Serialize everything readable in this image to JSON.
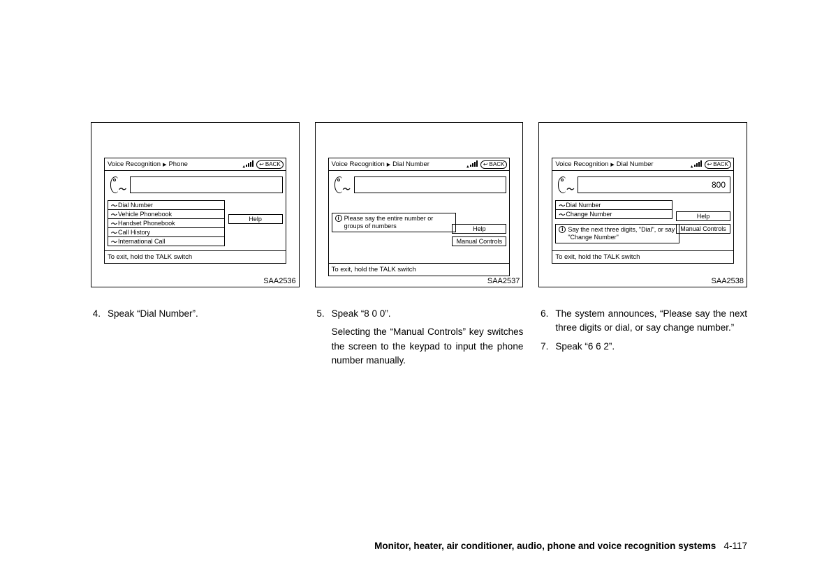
{
  "figures": [
    {
      "label": "SAA2536",
      "breadcrumb": [
        "Voice Recognition",
        "Phone"
      ],
      "back": "BACK",
      "input_value": "",
      "menu": [
        "Dial Number",
        "Vehicle Phonebook",
        "Handset Phonebook",
        "Call History",
        "International Call"
      ],
      "side_buttons": [
        "Help"
      ],
      "info": null,
      "side_top_offset": "20px",
      "exit": "To exit, hold the TALK switch"
    },
    {
      "label": "SAA2537",
      "breadcrumb": [
        "Voice Recognition",
        "Dial Number"
      ],
      "back": "BACK",
      "input_value": "",
      "menu": [],
      "side_buttons": [
        "Help",
        "Manual Controls"
      ],
      "info": "Please say the entire number or groups of numbers",
      "side_top_offset": "16px",
      "exit": "To exit, hold the TALK switch"
    },
    {
      "label": "SAA2538",
      "breadcrumb": [
        "Voice Recognition",
        "Dial Number"
      ],
      "back": "BACK",
      "input_value": "800",
      "menu": [
        "Dial Number",
        "Change Number"
      ],
      "side_buttons": [
        "Help",
        "Manual Controls"
      ],
      "info": "Say the next three digits, \"Dial\", or say \"Change Number\"",
      "side_top_offset": "16px",
      "exit": "To exit, hold the TALK switch"
    }
  ],
  "columns": [
    {
      "steps": [
        {
          "n": "4.",
          "text": "Speak “Dial Number”."
        }
      ]
    },
    {
      "steps": [
        {
          "n": "5.",
          "text": "Speak “8 0 0”."
        },
        {
          "n": "",
          "text": "Selecting the “Manual Controls” key switches the screen to the keypad to input the phone number manually."
        }
      ]
    },
    {
      "steps": [
        {
          "n": "6.",
          "text": "The system announces, “Please say the next three digits or dial, or say change number.”"
        },
        {
          "n": "7.",
          "text": "Speak “6 6 2”."
        }
      ]
    }
  ],
  "footer": {
    "section": "Monitor, heater, air conditioner, audio, phone and voice recognition systems",
    "page": "4-117"
  },
  "triangle": "▶"
}
